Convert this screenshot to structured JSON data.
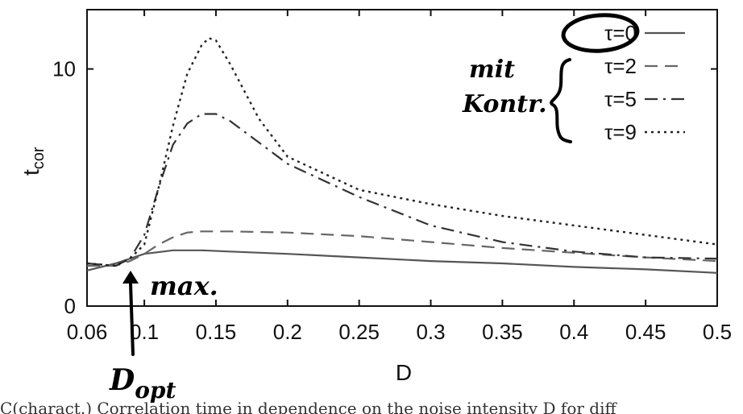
{
  "chart_data": {
    "type": "line",
    "xlabel": "D",
    "ylabel_main": "t",
    "ylabel_sub": "cor",
    "xlim": [
      0.06,
      0.5
    ],
    "ylim": [
      0,
      12.5
    ],
    "x_ticks": [
      "0.06",
      "0.1",
      "0.15",
      "0.2",
      "0.25",
      "0.3",
      "0.35",
      "0.4",
      "0.45",
      "0.5"
    ],
    "x_tick_values": [
      0.06,
      0.1,
      0.15,
      0.2,
      0.25,
      0.3,
      0.35,
      0.4,
      0.45,
      0.5
    ],
    "y_ticks": [
      "0",
      "10"
    ],
    "y_tick_values": [
      0,
      10
    ],
    "grid": false,
    "legend_position": "top-right",
    "series": [
      {
        "name": "τ=0",
        "style": "solid",
        "x": [
          0.06,
          0.08,
          0.1,
          0.12,
          0.14,
          0.16,
          0.2,
          0.25,
          0.3,
          0.35,
          0.4,
          0.45,
          0.5
        ],
        "y": [
          1.5,
          1.8,
          2.2,
          2.35,
          2.35,
          2.3,
          2.2,
          2.05,
          1.9,
          1.8,
          1.65,
          1.55,
          1.4
        ]
      },
      {
        "name": "τ=2",
        "style": "dashed",
        "x": [
          0.06,
          0.08,
          0.09,
          0.1,
          0.11,
          0.12,
          0.13,
          0.14,
          0.15,
          0.16,
          0.2,
          0.25,
          0.3,
          0.35,
          0.4,
          0.45,
          0.5
        ],
        "y": [
          1.7,
          1.7,
          1.9,
          2.2,
          2.6,
          2.9,
          3.1,
          3.15,
          3.15,
          3.15,
          3.1,
          2.95,
          2.7,
          2.45,
          2.25,
          2.05,
          1.9
        ]
      },
      {
        "name": "τ=5",
        "style": "dashdot",
        "x": [
          0.06,
          0.08,
          0.09,
          0.1,
          0.11,
          0.12,
          0.13,
          0.14,
          0.15,
          0.16,
          0.18,
          0.2,
          0.25,
          0.3,
          0.35,
          0.4,
          0.45,
          0.5
        ],
        "y": [
          1.8,
          1.7,
          2.0,
          3.0,
          5.0,
          6.8,
          7.7,
          8.1,
          8.1,
          7.8,
          6.9,
          6.0,
          4.6,
          3.4,
          2.7,
          2.3,
          2.05,
          2.0
        ]
      },
      {
        "name": "τ=9",
        "style": "dotted",
        "x": [
          0.06,
          0.08,
          0.09,
          0.1,
          0.11,
          0.12,
          0.13,
          0.14,
          0.145,
          0.15,
          0.16,
          0.18,
          0.2,
          0.25,
          0.3,
          0.35,
          0.4,
          0.45,
          0.5
        ],
        "y": [
          1.8,
          1.7,
          2.0,
          2.6,
          5.0,
          7.6,
          9.8,
          11.0,
          11.3,
          11.2,
          10.2,
          7.9,
          6.3,
          4.9,
          4.3,
          3.8,
          3.4,
          3.0,
          2.6
        ]
      }
    ],
    "annotations": {
      "mit": "mit",
      "kontr": "Kontr.",
      "max": "max.",
      "d_main": "D",
      "d_sub": "opt"
    },
    "caption": "C(charact.) Correlation time in dependence on the noise intensity D for diff"
  }
}
